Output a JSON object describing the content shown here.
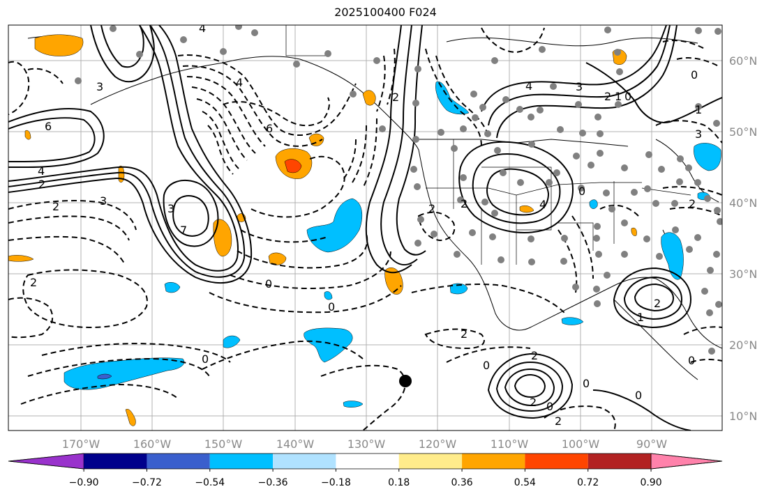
{
  "title": "2025100400 F024",
  "longitude_ticks": [
    "170°W",
    "160°W",
    "150°W",
    "140°W",
    "130°W",
    "120°W",
    "110°W",
    "100°W",
    "90°W"
  ],
  "latitude_ticks": [
    "60°N",
    "50°N",
    "40°N",
    "30°N",
    "20°N",
    "10°N"
  ],
  "colorbar": {
    "labels": [
      "−0.90",
      "−0.72",
      "−0.54",
      "−0.36",
      "−0.18",
      "0.18",
      "0.36",
      "0.54",
      "0.72",
      "0.90"
    ],
    "colors": [
      "#9932CC",
      "#00008B",
      "#3A5FCD",
      "#00BFFF",
      "#B0E2FF",
      "#FFFFFF",
      "#FFEC8B",
      "#FFA500",
      "#FF4500",
      "#B22222",
      "#FF82AB"
    ]
  },
  "contour_labels": [
    "4",
    "6",
    "3",
    "4",
    "2",
    "2",
    "3",
    "7",
    "3",
    "6",
    "4",
    "2",
    "0",
    "0",
    "2",
    "2",
    "2",
    "4",
    "3",
    "2",
    "1",
    "0",
    "1",
    "3",
    "2",
    "0",
    "4",
    "2",
    "1",
    "0",
    "2",
    "0",
    "0",
    "2",
    "2",
    "0",
    "0",
    "0",
    "0",
    "2"
  ]
}
